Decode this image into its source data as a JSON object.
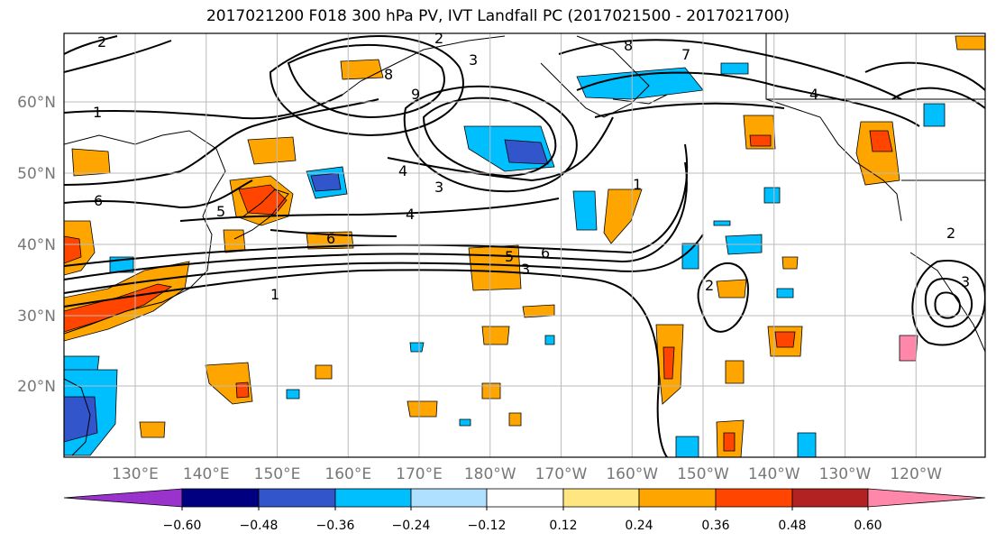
{
  "title": "2017021200 F018 300 hPa PV, IVT Landfall PC (2017021500 - 2017021700)",
  "map": {
    "lon_ticks": [
      "130°E",
      "140°E",
      "150°E",
      "160°E",
      "170°E",
      "180°W",
      "170°W",
      "160°W",
      "150°W",
      "140°W",
      "130°W",
      "120°W"
    ],
    "lat_ticks": [
      "20°N",
      "30°N",
      "40°N",
      "50°N",
      "60°N"
    ],
    "contour_labels": [
      "2",
      "1",
      "1",
      "6",
      "5",
      "4",
      "3",
      "4",
      "3",
      "6",
      "6",
      "5",
      "3",
      "2",
      "1",
      "2",
      "4",
      "8",
      "8",
      "7",
      "9",
      "2",
      "3"
    ],
    "colors": {
      "contour": "#000000",
      "land_outline": "#000000",
      "grid": "#bbbbbb"
    }
  },
  "colorbar": {
    "tick_labels": [
      "−0.60",
      "−0.48",
      "−0.36",
      "−0.24",
      "−0.12",
      "0.12",
      "0.24",
      "0.36",
      "0.48",
      "0.60"
    ],
    "colors": [
      "#9933cc",
      "#000080",
      "#3355cc",
      "#00bfff",
      "#b0e0ff",
      "#ffffff",
      "#ffe680",
      "#ffa500",
      "#ff4500",
      "#b22222",
      "#ff88aa"
    ]
  }
}
